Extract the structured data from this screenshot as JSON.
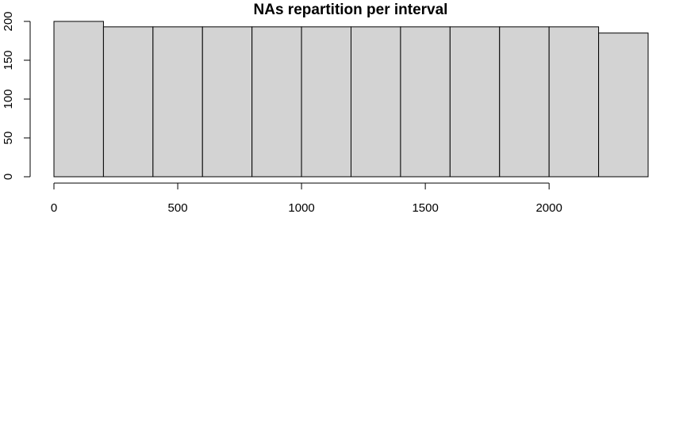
{
  "chart_data": {
    "type": "bar",
    "title": "NAs repartition per interval",
    "xlabel": "",
    "ylabel": "",
    "bins": [
      {
        "start": 0,
        "end": 200,
        "count": 200
      },
      {
        "start": 200,
        "end": 400,
        "count": 193
      },
      {
        "start": 400,
        "end": 600,
        "count": 193
      },
      {
        "start": 600,
        "end": 800,
        "count": 193
      },
      {
        "start": 800,
        "end": 1000,
        "count": 193
      },
      {
        "start": 1000,
        "end": 1200,
        "count": 193
      },
      {
        "start": 1200,
        "end": 1400,
        "count": 193
      },
      {
        "start": 1400,
        "end": 1600,
        "count": 193
      },
      {
        "start": 1600,
        "end": 1800,
        "count": 193
      },
      {
        "start": 1800,
        "end": 2000,
        "count": 193
      },
      {
        "start": 2000,
        "end": 2200,
        "count": 193
      },
      {
        "start": 2200,
        "end": 2400,
        "count": 185
      }
    ],
    "xlim": [
      0,
      2400
    ],
    "ylim": [
      0,
      200
    ],
    "x_ticks": [
      0,
      500,
      1000,
      1500,
      2000
    ],
    "x_tick_labels": [
      "0",
      "500",
      "1000",
      "1500",
      "2000"
    ],
    "y_ticks": [
      0,
      50,
      100,
      150,
      200
    ],
    "y_tick_labels": [
      "0",
      "50",
      "100",
      "150",
      "200"
    ],
    "bar_color": "#d3d3d3",
    "border_color": "#000000",
    "grid": false,
    "legend": "none"
  }
}
